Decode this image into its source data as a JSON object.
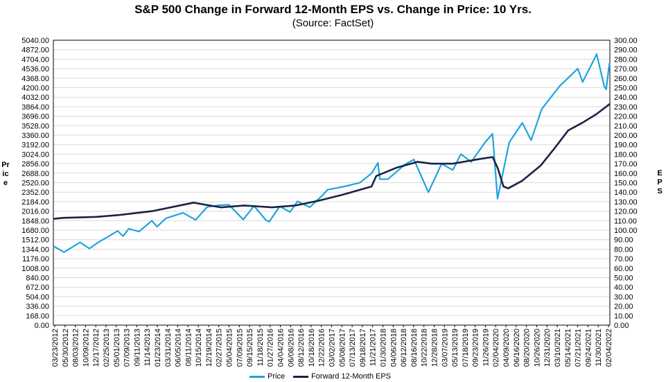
{
  "chart_data": {
    "type": "line",
    "title": "S&P 500 Change in Forward 12-Month EPS vs. Change in Price: 10 Yrs.",
    "subtitle": "(Source: FactSet)",
    "ylabel_left": "Price",
    "ylabel_right": "EPS",
    "ylim_left": [
      0,
      5040
    ],
    "ylim_right": [
      0,
      300
    ],
    "y_ticks_left": [
      "0.00",
      "168.00",
      "336.00",
      "504.00",
      "672.00",
      "840.00",
      "1008.00",
      "1176.00",
      "1344.00",
      "1512.00",
      "1680.00",
      "1848.00",
      "2016.00",
      "2184.00",
      "2352.00",
      "2520.00",
      "2688.00",
      "2856.00",
      "3024.00",
      "3192.00",
      "3360.00",
      "3528.00",
      "3696.00",
      "3864.00",
      "4032.00",
      "4200.00",
      "4368.00",
      "4536.00",
      "4704.00",
      "4872.00",
      "5040.00"
    ],
    "y_ticks_right": [
      "0.00",
      "10.00",
      "20.00",
      "30.00",
      "40.00",
      "50.00",
      "60.00",
      "70.00",
      "80.00",
      "90.00",
      "100.00",
      "110.00",
      "120.00",
      "130.00",
      "140.00",
      "150.00",
      "160.00",
      "170.00",
      "180.00",
      "190.00",
      "200.00",
      "210.00",
      "220.00",
      "230.00",
      "240.00",
      "250.00",
      "260.00",
      "270.00",
      "280.00",
      "290.00",
      "300.00"
    ],
    "x_ticks": [
      "03/23/2012",
      "05/30/2012",
      "08/03/2012",
      "10/09/2012",
      "12/17/2012",
      "02/25/2013",
      "05/01/2013",
      "07/09/2013",
      "09/11/2013",
      "11/14/2013",
      "01/23/2014",
      "03/31/2014",
      "06/05/2014",
      "08/11/2014",
      "10/15/2014",
      "12/19/2014",
      "02/27/2015",
      "05/04/2015",
      "07/09/2015",
      "09/15/2015",
      "11/18/2015",
      "01/27/2016",
      "04/04/2016",
      "06/08/2016",
      "08/12/2016",
      "10/18/2016",
      "12/22/2016",
      "03/02/2017",
      "05/08/2017",
      "07/13/2017",
      "09/18/2017",
      "11/21/2017",
      "01/30/2018",
      "04/06/2018",
      "06/12/2018",
      "08/16/2018",
      "10/22/2018",
      "12/28/2018",
      "03/07/2019",
      "05/13/2019",
      "07/18/2019",
      "09/23/2019",
      "11/26/2019",
      "02/04/2020",
      "04/09/2020",
      "06/16/2020",
      "08/20/2020",
      "10/26/2020",
      "12/31/2020",
      "03/10/2021",
      "05/14/2021",
      "07/21/2021",
      "09/24/2021",
      "11/30/2021",
      "02/04/2022"
    ],
    "x_range": [
      "2012-03-23",
      "2022-04-01"
    ],
    "series": [
      {
        "name": "Price",
        "color": "#1fa3dd",
        "axis": "left",
        "points": [
          [
            "2012-03-23",
            1400
          ],
          [
            "2012-06-01",
            1290
          ],
          [
            "2012-09-14",
            1465
          ],
          [
            "2012-11-15",
            1355
          ],
          [
            "2013-01-15",
            1470
          ],
          [
            "2013-03-15",
            1560
          ],
          [
            "2013-05-20",
            1667
          ],
          [
            "2013-06-24",
            1573
          ],
          [
            "2013-08-01",
            1706
          ],
          [
            "2013-10-08",
            1655
          ],
          [
            "2013-12-31",
            1848
          ],
          [
            "2014-02-03",
            1742
          ],
          [
            "2014-04-02",
            1890
          ],
          [
            "2014-07-24",
            1988
          ],
          [
            "2014-10-15",
            1862
          ],
          [
            "2014-12-29",
            2090
          ],
          [
            "2015-03-02",
            2117
          ],
          [
            "2015-05-21",
            2131
          ],
          [
            "2015-08-24",
            1868
          ],
          [
            "2015-11-03",
            2109
          ],
          [
            "2016-01-20",
            1859
          ],
          [
            "2016-02-11",
            1829
          ],
          [
            "2016-04-20",
            2102
          ],
          [
            "2016-06-27",
            2000
          ],
          [
            "2016-08-15",
            2190
          ],
          [
            "2016-11-04",
            2085
          ],
          [
            "2017-01-26",
            2296
          ],
          [
            "2017-03-01",
            2395
          ],
          [
            "2017-06-19",
            2453
          ],
          [
            "2017-09-29",
            2519
          ],
          [
            "2017-12-18",
            2690
          ],
          [
            "2018-01-26",
            2872
          ],
          [
            "2018-02-08",
            2581
          ],
          [
            "2018-04-02",
            2582
          ],
          [
            "2018-07-25",
            2846
          ],
          [
            "2018-09-20",
            2930
          ],
          [
            "2018-12-24",
            2351
          ],
          [
            "2019-03-21",
            2854
          ],
          [
            "2019-06-03",
            2744
          ],
          [
            "2019-07-26",
            3025
          ],
          [
            "2019-10-02",
            2887
          ],
          [
            "2019-12-31",
            3230
          ],
          [
            "2020-02-19",
            3386
          ],
          [
            "2020-03-23",
            2237
          ],
          [
            "2020-06-08",
            3232
          ],
          [
            "2020-09-02",
            3580
          ],
          [
            "2020-10-30",
            3270
          ],
          [
            "2021-01-08",
            3824
          ],
          [
            "2021-05-07",
            4232
          ],
          [
            "2021-09-02",
            4536
          ],
          [
            "2021-10-04",
            4300
          ],
          [
            "2021-12-31",
            4766
          ],
          [
            "2022-01-04",
            4796
          ],
          [
            "2022-02-23",
            4225
          ],
          [
            "2022-03-08",
            4170
          ],
          [
            "2022-03-29",
            4631
          ],
          [
            "2022-04-01",
            4545
          ]
        ]
      },
      {
        "name": "Forward 12-Month EPS",
        "color": "#1b2145",
        "axis": "right",
        "points": [
          [
            "2012-03-23",
            112
          ],
          [
            "2012-06-01",
            113
          ],
          [
            "2013-01-01",
            114
          ],
          [
            "2013-06-01",
            116
          ],
          [
            "2014-01-01",
            120
          ],
          [
            "2014-06-01",
            125
          ],
          [
            "2014-10-01",
            129
          ],
          [
            "2015-01-15",
            126
          ],
          [
            "2015-04-01",
            124
          ],
          [
            "2015-09-01",
            126
          ],
          [
            "2016-03-01",
            124
          ],
          [
            "2016-08-01",
            126
          ],
          [
            "2017-01-01",
            131
          ],
          [
            "2017-06-01",
            137
          ],
          [
            "2017-12-15",
            146
          ],
          [
            "2018-01-15",
            157
          ],
          [
            "2018-06-01",
            166
          ],
          [
            "2018-10-15",
            172
          ],
          [
            "2019-01-15",
            170
          ],
          [
            "2019-06-01",
            170
          ],
          [
            "2019-12-01",
            175
          ],
          [
            "2020-02-20",
            177
          ],
          [
            "2020-03-25",
            165
          ],
          [
            "2020-05-01",
            146
          ],
          [
            "2020-06-01",
            144
          ],
          [
            "2020-09-01",
            152
          ],
          [
            "2021-01-01",
            168
          ],
          [
            "2021-04-01",
            186
          ],
          [
            "2021-07-01",
            205
          ],
          [
            "2021-10-01",
            213
          ],
          [
            "2022-01-01",
            222
          ],
          [
            "2022-04-01",
            233
          ]
        ]
      }
    ]
  }
}
